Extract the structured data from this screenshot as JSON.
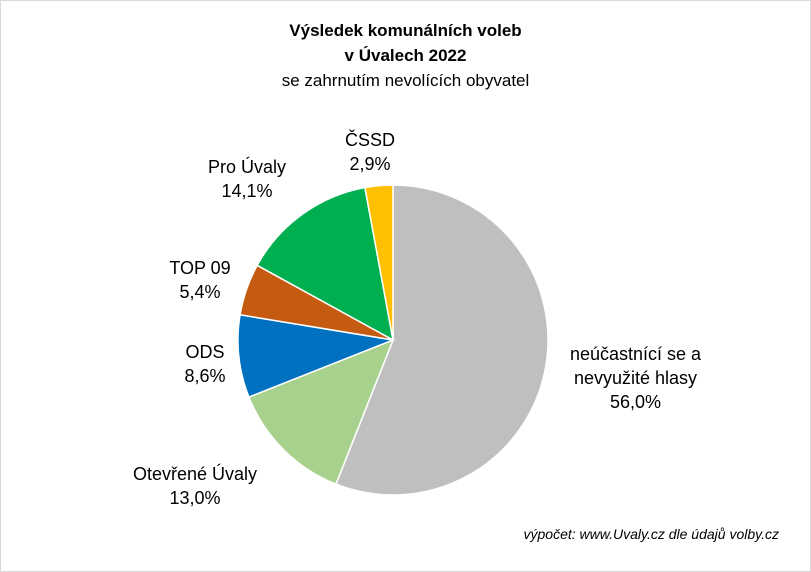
{
  "chart_data": {
    "type": "pie",
    "title": [
      "Výsledek komunálních voleb",
      "v Úvalech 2022"
    ],
    "subtitle": "se zahrnutím nevolících obyvatel",
    "slices": [
      {
        "name": "neúčastnící se a nevyužité hlasy",
        "name_lines": [
          "neúčastnící se a",
          "nevyužité hlasy"
        ],
        "value": 56.0,
        "label": "56,0%",
        "color": "#bfbfbf"
      },
      {
        "name": "Otevřené Úvaly",
        "name_lines": [
          "Otevřené Úvaly"
        ],
        "value": 13.0,
        "label": "13,0%",
        "color": "#a9d18e"
      },
      {
        "name": "ODS",
        "name_lines": [
          "ODS"
        ],
        "value": 8.6,
        "label": "8,6%",
        "color": "#0070c0"
      },
      {
        "name": "TOP 09",
        "name_lines": [
          "TOP 09"
        ],
        "value": 5.4,
        "label": "5,4%",
        "color": "#c55a11"
      },
      {
        "name": "Pro Úvaly",
        "name_lines": [
          "Pro Úvaly"
        ],
        "value": 14.1,
        "label": "14,1%",
        "color": "#00b050"
      },
      {
        "name": "ČSSD",
        "name_lines": [
          "ČSSD"
        ],
        "value": 2.9,
        "label": "2,9%",
        "color": "#ffc000"
      }
    ]
  },
  "source_note": "výpočet: www.Uvaly.cz dle údajů volby.cz"
}
